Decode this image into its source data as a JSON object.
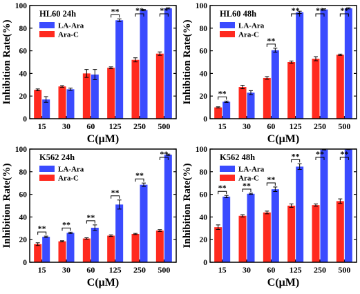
{
  "chart_data": [
    {
      "type": "bar",
      "title": "HL60 24h",
      "xlabel": "C(μM)",
      "ylabel": "Inhibition Rate(%)",
      "ylim": [
        0,
        100
      ],
      "yticks": [
        0,
        20,
        40,
        60,
        80,
        100
      ],
      "categories": [
        "15",
        "30",
        "60",
        "125",
        "250",
        "500"
      ],
      "legend_position": "top-left",
      "series": [
        {
          "name": "LA-Ara",
          "color": "#3a4bff",
          "values": [
            17,
            26,
            39,
            87,
            96,
            97.5
          ],
          "errors": [
            2.5,
            1,
            4.5,
            1.2,
            0.6,
            0.5
          ]
        },
        {
          "name": "Ara-C",
          "color": "#ff2a1f",
          "values": [
            25.5,
            28.5,
            40,
            45,
            52,
            57.5
          ],
          "errors": [
            0.8,
            0.7,
            3.5,
            0.8,
            1.8,
            1.5
          ]
        }
      ],
      "significance": [
        {
          "category": "125",
          "label": "**"
        },
        {
          "category": "250",
          "label": "**"
        },
        {
          "category": "500",
          "label": "**"
        }
      ]
    },
    {
      "type": "bar",
      "title": "HL60 48h",
      "xlabel": "C(μM)",
      "ylabel": "Inhibition Rate(%)",
      "ylim": [
        0,
        100
      ],
      "yticks": [
        0,
        20,
        40,
        60,
        80,
        100
      ],
      "categories": [
        "15",
        "30",
        "60",
        "125",
        "250",
        "500"
      ],
      "legend_position": "top-left",
      "series": [
        {
          "name": "LA-Ara",
          "color": "#3a4bff",
          "values": [
            15,
            23,
            60.5,
            94,
            96.5,
            97.5
          ],
          "errors": [
            0.6,
            1.8,
            1.8,
            1,
            0.6,
            0.5
          ]
        },
        {
          "name": "Ara-C",
          "color": "#ff2a1f",
          "values": [
            10,
            28,
            36,
            50,
            53,
            56.5
          ],
          "errors": [
            0.5,
            1.5,
            1.2,
            1,
            1.8,
            0.6
          ]
        }
      ],
      "significance": [
        {
          "category": "15",
          "label": "**"
        },
        {
          "category": "60",
          "label": "**"
        },
        {
          "category": "125",
          "label": "**"
        },
        {
          "category": "250",
          "label": "**"
        },
        {
          "category": "500",
          "label": "**"
        }
      ]
    },
    {
      "type": "bar",
      "title": "K562 24h",
      "xlabel": "C(μM)",
      "ylabel": "Inhibition Rate(%)",
      "ylim": [
        0,
        100
      ],
      "yticks": [
        0,
        20,
        40,
        60,
        80,
        100
      ],
      "categories": [
        "15",
        "30",
        "60",
        "125",
        "250",
        "500"
      ],
      "legend_position": "top-left",
      "series": [
        {
          "name": "LA-Ara",
          "color": "#3a4bff",
          "values": [
            22.5,
            26,
            30.5,
            51,
            68.5,
            95
          ],
          "errors": [
            0.6,
            0.6,
            2.5,
            4,
            1.5,
            0.6
          ]
        },
        {
          "name": "Ara-C",
          "color": "#ff2a1f",
          "values": [
            16,
            18.5,
            21,
            23.5,
            25,
            28
          ],
          "errors": [
            1.2,
            0.5,
            0.6,
            0.7,
            0.5,
            0.8
          ]
        }
      ],
      "significance": [
        {
          "category": "15",
          "label": "**"
        },
        {
          "category": "30",
          "label": "**"
        },
        {
          "category": "60",
          "label": "**"
        },
        {
          "category": "125",
          "label": "**"
        },
        {
          "category": "250",
          "label": "**"
        },
        {
          "category": "500",
          "label": "**"
        }
      ]
    },
    {
      "type": "bar",
      "title": "K562 48h",
      "xlabel": "C(μM)",
      "ylabel": "Inhibition Rate(%)",
      "ylim": [
        0,
        100
      ],
      "yticks": [
        0,
        20,
        40,
        60,
        80,
        100
      ],
      "categories": [
        "15",
        "30",
        "60",
        "125",
        "250",
        "500"
      ],
      "legend_position": "top-left",
      "series": [
        {
          "name": "LA-Ara",
          "color": "#3a4bff",
          "values": [
            58,
            60.5,
            64.5,
            84.5,
            99.5,
            99.8
          ],
          "errors": [
            1,
            0.5,
            2,
            2.5,
            0.3,
            0.2
          ]
        },
        {
          "name": "Ara-C",
          "color": "#ff2a1f",
          "values": [
            31,
            41,
            44,
            50,
            50.5,
            54
          ],
          "errors": [
            2,
            1,
            1.2,
            1.5,
            1,
            2
          ]
        }
      ],
      "significance": [
        {
          "category": "15",
          "label": "**"
        },
        {
          "category": "30",
          "label": "**"
        },
        {
          "category": "60",
          "label": "**"
        },
        {
          "category": "125",
          "label": "**"
        },
        {
          "category": "250",
          "label": "**"
        },
        {
          "category": "500",
          "label": "**"
        }
      ]
    }
  ]
}
